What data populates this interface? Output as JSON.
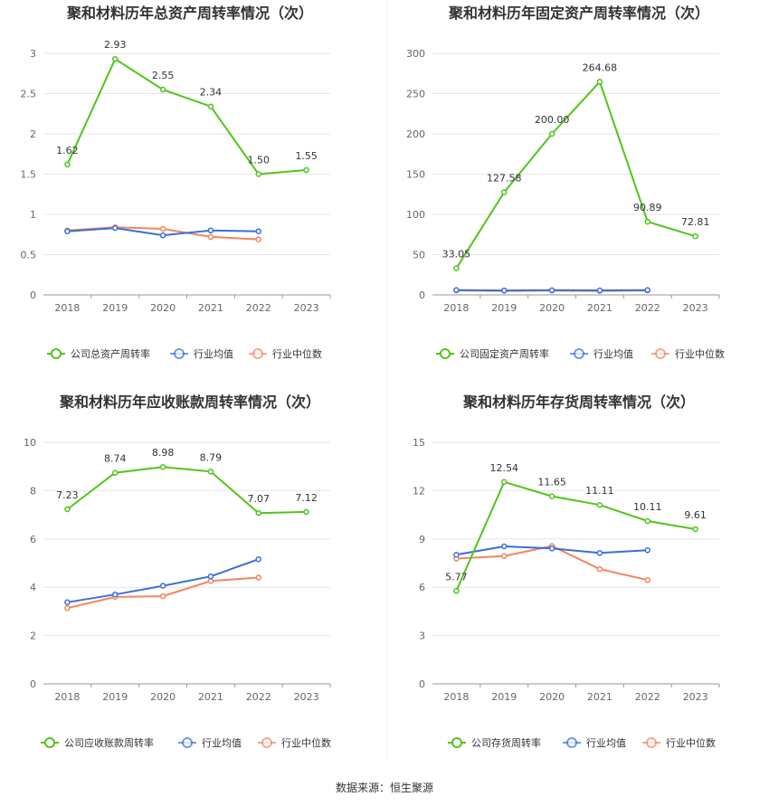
{
  "source_label": "数据来源：恒生聚源",
  "chart_data": [
    {
      "type": "line",
      "title": "聚和材料历年总资产周转率情况（次）",
      "categories": [
        "2018",
        "2019",
        "2020",
        "2021",
        "2022",
        "2023"
      ],
      "yticks": [
        "0",
        "0.5",
        "1",
        "1.5",
        "2",
        "2.5",
        "3"
      ],
      "ylim": [
        0,
        3
      ],
      "grid": true,
      "legend_position": "bottom",
      "series": [
        {
          "name": "公司总资产周转率",
          "color": "#52c41a",
          "values": [
            1.62,
            2.93,
            2.55,
            2.34,
            1.5,
            1.55
          ],
          "labels": [
            "1.62",
            "2.93",
            "2.55",
            "2.34",
            "1.50",
            "1.55"
          ]
        },
        {
          "name": "行业均值",
          "color": "#3a6fd8",
          "values": [
            0.79,
            0.83,
            0.74,
            0.8,
            0.79,
            null
          ]
        },
        {
          "name": "行业中位数",
          "color": "#f4845f",
          "values": [
            0.8,
            0.84,
            0.82,
            0.72,
            0.69,
            null
          ]
        }
      ]
    },
    {
      "type": "line",
      "title": "聚和材料历年固定资产周转率情况（次）",
      "categories": [
        "2018",
        "2019",
        "2020",
        "2021",
        "2022",
        "2023"
      ],
      "yticks": [
        "0",
        "50",
        "100",
        "150",
        "200",
        "250",
        "300"
      ],
      "ylim": [
        0,
        300
      ],
      "grid": true,
      "legend_position": "bottom",
      "series": [
        {
          "name": "公司固定资产周转率",
          "color": "#52c41a",
          "values": [
            33.05,
            127.58,
            200.0,
            264.68,
            90.89,
            72.81
          ],
          "labels": [
            "33.05",
            "127.58",
            "200.00",
            "264.68",
            "90.89",
            "72.81"
          ]
        },
        {
          "name": "行业均值",
          "color": "#3a6fd8",
          "values": [
            6.0,
            5.5,
            5.8,
            5.6,
            6.0,
            null
          ]
        },
        {
          "name": "行业中位数",
          "color": "#f4845f",
          "values": [
            5.5,
            5.0,
            5.3,
            5.0,
            5.5,
            null
          ]
        }
      ]
    },
    {
      "type": "line",
      "title": "聚和材料历年应收账款周转率情况（次）",
      "categories": [
        "2018",
        "2019",
        "2020",
        "2021",
        "2022",
        "2023"
      ],
      "yticks": [
        "0",
        "2",
        "4",
        "6",
        "8",
        "10"
      ],
      "ylim": [
        0,
        10
      ],
      "grid": true,
      "legend_position": "bottom",
      "series": [
        {
          "name": "公司应收账款周转率",
          "color": "#52c41a",
          "values": [
            7.23,
            8.74,
            8.98,
            8.79,
            7.07,
            7.12
          ],
          "labels": [
            "7.23",
            "8.74",
            "8.98",
            "8.79",
            "7.07",
            "7.12"
          ]
        },
        {
          "name": "行业均值",
          "color": "#3a6fd8",
          "values": [
            3.38,
            3.7,
            4.06,
            4.45,
            5.16,
            null
          ]
        },
        {
          "name": "行业中位数",
          "color": "#f4845f",
          "values": [
            3.14,
            3.6,
            3.63,
            4.26,
            4.4,
            null
          ]
        }
      ]
    },
    {
      "type": "line",
      "title": "聚和材料历年存货周转率情况（次）",
      "categories": [
        "2018",
        "2019",
        "2020",
        "2021",
        "2022",
        "2023"
      ],
      "yticks": [
        "0",
        "3",
        "6",
        "9",
        "12",
        "15"
      ],
      "ylim": [
        0,
        15
      ],
      "grid": true,
      "legend_position": "bottom",
      "series": [
        {
          "name": "公司存货周转率",
          "color": "#52c41a",
          "values": [
            5.77,
            12.54,
            11.65,
            11.11,
            10.11,
            9.61
          ],
          "labels": [
            "5.77",
            "12.54",
            "11.65",
            "11.11",
            "10.11",
            "9.61"
          ]
        },
        {
          "name": "行业均值",
          "color": "#3a6fd8",
          "values": [
            8.02,
            8.54,
            8.41,
            8.13,
            8.3,
            null
          ]
        },
        {
          "name": "行业中位数",
          "color": "#f4845f",
          "values": [
            7.78,
            7.94,
            8.56,
            7.13,
            6.45,
            null
          ]
        }
      ]
    }
  ]
}
